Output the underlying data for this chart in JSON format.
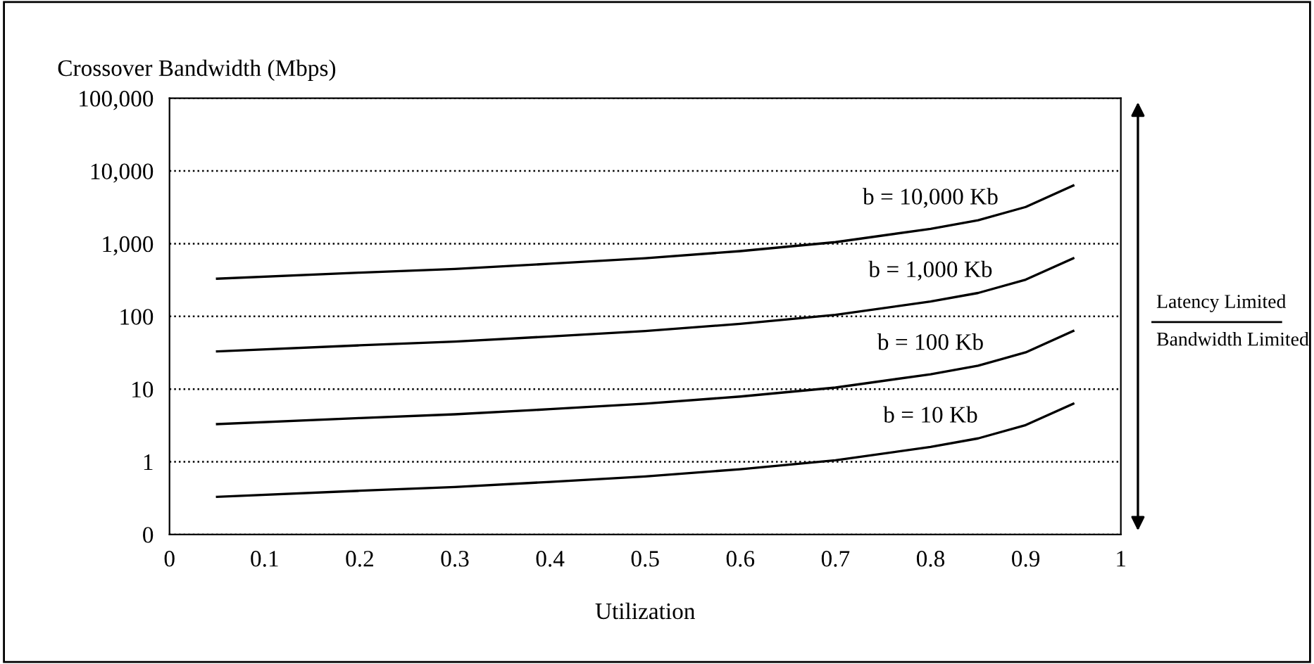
{
  "chart_data": {
    "type": "line",
    "ylabel": "Crossover Bandwidth (Mbps)",
    "xlabel": "Utilization",
    "log": "y",
    "x": [
      0.05,
      0.2,
      0.3,
      0.4,
      0.5,
      0.6,
      0.7,
      0.8,
      0.85,
      0.9,
      0.95
    ],
    "series": [
      {
        "name": "b = 10,000 Kb",
        "color": "#000000",
        "values": [
          330,
          400,
          450,
          530,
          630,
          790,
          1050,
          1600,
          2100,
          3200,
          6300
        ]
      },
      {
        "name": "b = 1,000 Kb",
        "color": "#000000",
        "values": [
          33,
          40,
          45,
          53,
          63,
          79,
          105,
          160,
          210,
          320,
          630
        ]
      },
      {
        "name": "b = 100 Kb",
        "color": "#000000",
        "values": [
          3.3,
          4,
          4.5,
          5.3,
          6.3,
          7.9,
          10.5,
          16,
          21,
          32,
          63
        ]
      },
      {
        "name": "b = 10 Kb",
        "color": "#000000",
        "values": [
          0.33,
          0.4,
          0.45,
          0.53,
          0.63,
          0.79,
          1.05,
          1.6,
          2.1,
          3.2,
          6.3
        ]
      }
    ],
    "xlim": [
      0,
      1
    ],
    "xticks": [
      0,
      0.1,
      0.2,
      0.3,
      0.4,
      0.5,
      0.6,
      0.7,
      0.8,
      0.9,
      1
    ],
    "ylim": [
      0.1,
      100000
    ],
    "yticks": [
      {
        "value": 0.1,
        "label": "0"
      },
      1,
      10,
      100,
      {
        "value": 1000,
        "label": "1,000"
      },
      {
        "value": 10000,
        "label": "10,000"
      },
      {
        "value": 100000,
        "label": "100,000"
      }
    ],
    "grid": "y",
    "marker": "none",
    "line_style": "solid",
    "legend": false,
    "annotations": [
      "Latency Limited",
      "Bandwidth Limited"
    ]
  }
}
